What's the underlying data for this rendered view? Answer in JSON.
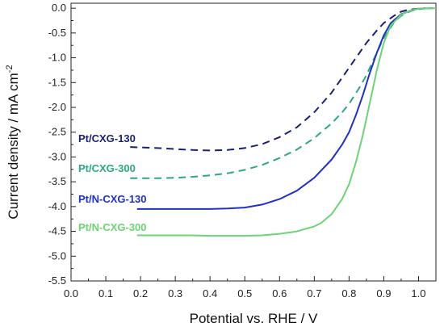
{
  "chart_data": {
    "type": "line",
    "xlabel": "Potential vs. RHE / V",
    "ylabel_main": "Current density / mA cm",
    "ylabel_sup": "-2",
    "xlim": [
      0.0,
      1.05
    ],
    "ylim": [
      -5.5,
      0.1
    ],
    "x_ticks": [
      "0.0",
      "0.1",
      "0.2",
      "0.3",
      "0.4",
      "0.5",
      "0.6",
      "0.7",
      "0.8",
      "0.9",
      "1.0"
    ],
    "y_ticks": [
      "0.0",
      "-0.5",
      "-1.0",
      "-1.5",
      "-2.0",
      "-2.5",
      "-3.0",
      "-3.5",
      "-4.0",
      "-4.5",
      "-5.0",
      "-5.5"
    ],
    "grid": false,
    "series": [
      {
        "name": "Pt/CXG-130",
        "color": "#1a1f7a",
        "dash": true,
        "x": [
          0.17,
          0.25,
          0.3,
          0.35,
          0.4,
          0.45,
          0.5,
          0.55,
          0.6,
          0.65,
          0.7,
          0.75,
          0.8,
          0.85,
          0.88,
          0.9,
          0.93,
          0.95,
          0.97,
          1.0,
          1.02
        ],
        "y": [
          -2.8,
          -2.82,
          -2.84,
          -2.86,
          -2.87,
          -2.86,
          -2.82,
          -2.74,
          -2.6,
          -2.4,
          -2.1,
          -1.7,
          -1.2,
          -0.7,
          -0.45,
          -0.3,
          -0.15,
          -0.07,
          -0.03,
          -0.01,
          0.0
        ]
      },
      {
        "name": "Pt/CXG-300",
        "color": "#2aa982",
        "dash": true,
        "x": [
          0.17,
          0.25,
          0.3,
          0.35,
          0.4,
          0.45,
          0.5,
          0.55,
          0.6,
          0.65,
          0.7,
          0.75,
          0.78,
          0.8,
          0.83,
          0.85,
          0.88,
          0.9,
          0.93,
          0.95,
          0.98,
          1.0,
          1.03
        ],
        "y": [
          -3.43,
          -3.43,
          -3.42,
          -3.4,
          -3.37,
          -3.33,
          -3.26,
          -3.16,
          -3.02,
          -2.85,
          -2.62,
          -2.32,
          -2.1,
          -1.93,
          -1.6,
          -1.35,
          -0.9,
          -0.6,
          -0.28,
          -0.15,
          -0.05,
          -0.02,
          0.0
        ]
      },
      {
        "name": "Pt/N-CXG-130",
        "color": "#1f2fd0",
        "dash": false,
        "x": [
          0.19,
          0.25,
          0.3,
          0.35,
          0.4,
          0.45,
          0.5,
          0.55,
          0.6,
          0.65,
          0.7,
          0.75,
          0.78,
          0.8,
          0.82,
          0.84,
          0.86,
          0.88,
          0.9,
          0.92,
          0.95,
          0.98,
          1.0,
          1.04
        ],
        "y": [
          -4.05,
          -4.05,
          -4.05,
          -4.05,
          -4.05,
          -4.04,
          -4.02,
          -3.96,
          -3.85,
          -3.68,
          -3.42,
          -3.05,
          -2.75,
          -2.5,
          -2.15,
          -1.75,
          -1.3,
          -0.9,
          -0.55,
          -0.3,
          -0.12,
          -0.04,
          -0.01,
          0.0
        ]
      },
      {
        "name": "Pt/N-CXG-300",
        "color": "#6cd474",
        "dash": false,
        "x": [
          0.19,
          0.25,
          0.3,
          0.35,
          0.4,
          0.45,
          0.5,
          0.55,
          0.6,
          0.65,
          0.7,
          0.72,
          0.75,
          0.78,
          0.8,
          0.82,
          0.84,
          0.86,
          0.88,
          0.9,
          0.92,
          0.95,
          0.98,
          1.0,
          1.05
        ],
        "y": [
          -4.58,
          -4.58,
          -4.58,
          -4.58,
          -4.59,
          -4.59,
          -4.59,
          -4.58,
          -4.55,
          -4.5,
          -4.4,
          -4.33,
          -4.15,
          -3.85,
          -3.55,
          -3.1,
          -2.55,
          -1.9,
          -1.25,
          -0.7,
          -0.35,
          -0.13,
          -0.04,
          -0.01,
          0.0
        ]
      }
    ]
  }
}
